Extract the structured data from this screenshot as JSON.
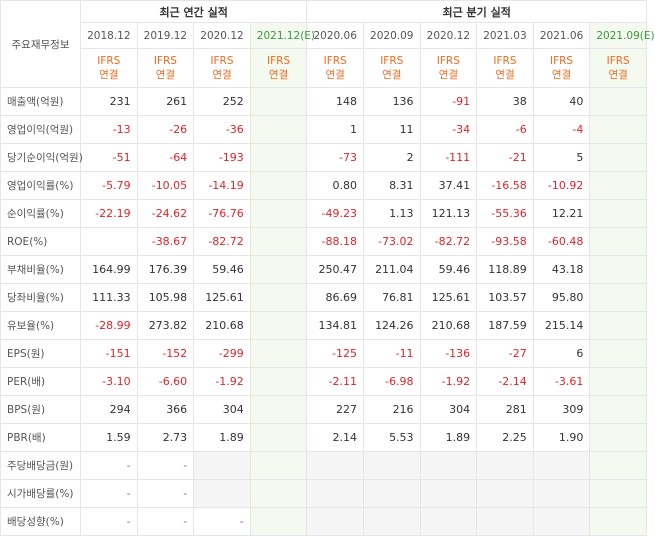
{
  "header": {
    "title": "주요재무정보",
    "annual": "최근 연간 실적",
    "quarterly": "최근 분기 실적",
    "columns": [
      {
        "period": "2018.12",
        "ifrs": "IFRS",
        "basis": "연결",
        "estimate": false
      },
      {
        "period": "2019.12",
        "ifrs": "IFRS",
        "basis": "연결",
        "estimate": false
      },
      {
        "period": "2020.12",
        "ifrs": "IFRS",
        "basis": "연결",
        "estimate": false
      },
      {
        "period": "2021.12(E)",
        "ifrs": "IFRS",
        "basis": "연결",
        "estimate": true
      },
      {
        "period": "2020.06",
        "ifrs": "IFRS",
        "basis": "연결",
        "estimate": false
      },
      {
        "period": "2020.09",
        "ifrs": "IFRS",
        "basis": "연결",
        "estimate": false
      },
      {
        "period": "2020.12",
        "ifrs": "IFRS",
        "basis": "연결",
        "estimate": false
      },
      {
        "period": "2021.03",
        "ifrs": "IFRS",
        "basis": "연결",
        "estimate": false
      },
      {
        "period": "2021.06",
        "ifrs": "IFRS",
        "basis": "연결",
        "estimate": false
      },
      {
        "period": "2021.09(E)",
        "ifrs": "IFRS",
        "basis": "연결",
        "estimate": true
      }
    ]
  },
  "groups": [
    [
      {
        "label": "매출액(억원)",
        "values": [
          "231",
          "261",
          "252",
          null,
          "148",
          "136",
          "-91",
          "38",
          "40",
          null
        ]
      },
      {
        "label": "영업이익(억원)",
        "values": [
          "-13",
          "-26",
          "-36",
          null,
          "1",
          "11",
          "-34",
          "-6",
          "-4",
          null
        ]
      },
      {
        "label": "당기순이익(억원)",
        "values": [
          "-51",
          "-64",
          "-193",
          null,
          "-73",
          "2",
          "-111",
          "-21",
          "5",
          null
        ]
      }
    ],
    [
      {
        "label": "영업이익률(%)",
        "values": [
          "-5.79",
          "-10.05",
          "-14.19",
          null,
          "0.80",
          "8.31",
          "37.41",
          "-16.58",
          "-10.92",
          null
        ]
      },
      {
        "label": "순이익률(%)",
        "values": [
          "-22.19",
          "-24.62",
          "-76.76",
          null,
          "-49.23",
          "1.13",
          "121.13",
          "-55.36",
          "12.21",
          null
        ]
      },
      {
        "label": "ROE(%)",
        "values": [
          null,
          "-38.67",
          "-82.72",
          null,
          "-88.18",
          "-73.02",
          "-82.72",
          "-93.58",
          "-60.48",
          null
        ]
      }
    ],
    [
      {
        "label": "부채비율(%)",
        "values": [
          "164.99",
          "176.39",
          "59.46",
          null,
          "250.47",
          "211.04",
          "59.46",
          "118.89",
          "43.18",
          null
        ]
      },
      {
        "label": "당좌비율(%)",
        "values": [
          "111.33",
          "105.98",
          "125.61",
          null,
          "86.69",
          "76.81",
          "125.61",
          "103.57",
          "95.80",
          null
        ]
      },
      {
        "label": "유보율(%)",
        "values": [
          "-28.99",
          "273.82",
          "210.68",
          null,
          "134.81",
          "124.26",
          "210.68",
          "187.59",
          "215.14",
          null
        ]
      }
    ],
    [
      {
        "label": "EPS(원)",
        "values": [
          "-151",
          "-152",
          "-299",
          null,
          "-125",
          "-11",
          "-136",
          "-27",
          "6",
          null
        ]
      },
      {
        "label": "PER(배)",
        "values": [
          "-3.10",
          "-6.60",
          "-1.92",
          null,
          "-2.11",
          "-6.98",
          "-1.92",
          "-2.14",
          "-3.61",
          null
        ]
      },
      {
        "label": "BPS(원)",
        "values": [
          "294",
          "366",
          "304",
          null,
          "227",
          "216",
          "304",
          "281",
          "309",
          null
        ]
      },
      {
        "label": "PBR(배)",
        "values": [
          "1.59",
          "2.73",
          "1.89",
          null,
          "2.14",
          "5.53",
          "1.89",
          "2.25",
          "1.90",
          null
        ]
      }
    ],
    [
      {
        "label": "주당배당금(원)",
        "values": [
          "-",
          "-",
          null,
          null,
          null,
          null,
          null,
          null,
          null,
          null
        ]
      },
      {
        "label": "시가배당률(%)",
        "values": [
          "-",
          "-",
          null,
          null,
          null,
          null,
          null,
          null,
          null,
          null
        ]
      },
      {
        "label": "배당성향(%)",
        "values": [
          "-",
          "-",
          "-",
          null,
          null,
          null,
          null,
          null,
          null,
          null
        ]
      }
    ]
  ]
}
